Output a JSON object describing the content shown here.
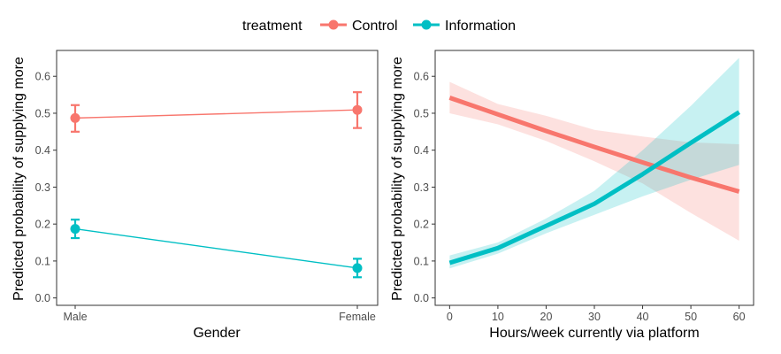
{
  "legend": {
    "title": "treatment",
    "entries": [
      {
        "label": "Control",
        "color": "#F8766D"
      },
      {
        "label": "Information",
        "color": "#00BFC4"
      }
    ]
  },
  "chart_data": [
    {
      "type": "line",
      "subtype": "point-errorbar",
      "xlabel": "Gender",
      "ylabel": "Predicted probability of supplying more",
      "categories": [
        "Male",
        "Female"
      ],
      "ylim": [
        -0.02,
        0.67
      ],
      "yticks": [
        0.0,
        0.1,
        0.2,
        0.3,
        0.4,
        0.5,
        0.6
      ],
      "ytick_labels": [
        "0.0",
        "0.1",
        "0.2",
        "0.3",
        "0.4",
        "0.5",
        "0.6"
      ],
      "grid": false,
      "series": [
        {
          "name": "Control",
          "color": "#F8766D",
          "values": [
            0.487,
            0.509
          ],
          "lower": [
            0.45,
            0.46
          ],
          "upper": [
            0.522,
            0.557
          ]
        },
        {
          "name": "Information",
          "color": "#00BFC4",
          "values": [
            0.187,
            0.081
          ],
          "lower": [
            0.162,
            0.056
          ],
          "upper": [
            0.212,
            0.106
          ]
        }
      ]
    },
    {
      "type": "line",
      "subtype": "line-ribbon",
      "xlabel": "Hours/week currently via platform",
      "ylabel": "Predicted probability of supplying more",
      "xlim": [
        -3,
        63
      ],
      "xticks": [
        0,
        10,
        20,
        30,
        40,
        50,
        60
      ],
      "xtick_labels": [
        "0",
        "10",
        "20",
        "30",
        "40",
        "50",
        "60"
      ],
      "ylim": [
        -0.02,
        0.67
      ],
      "yticks": [
        0.0,
        0.1,
        0.2,
        0.3,
        0.4,
        0.5,
        0.6
      ],
      "ytick_labels": [
        "0.0",
        "0.1",
        "0.2",
        "0.3",
        "0.4",
        "0.5",
        "0.6"
      ],
      "grid": false,
      "series": [
        {
          "name": "Control",
          "color": "#F8766D",
          "x": [
            0,
            10,
            20,
            30,
            40,
            50,
            60
          ],
          "values": [
            0.542,
            0.497,
            0.452,
            0.409,
            0.367,
            0.326,
            0.288
          ],
          "lower": [
            0.5,
            0.47,
            0.425,
            0.37,
            0.31,
            0.23,
            0.155
          ],
          "upper": [
            0.585,
            0.525,
            0.493,
            0.455,
            0.437,
            0.421,
            0.416
          ]
        },
        {
          "name": "Information",
          "color": "#00BFC4",
          "x": [
            0,
            10,
            20,
            30,
            40,
            50,
            60
          ],
          "values": [
            0.095,
            0.135,
            0.195,
            0.255,
            0.335,
            0.42,
            0.503
          ],
          "lower": [
            0.08,
            0.12,
            0.175,
            0.225,
            0.275,
            0.32,
            0.36
          ],
          "upper": [
            0.115,
            0.15,
            0.215,
            0.29,
            0.4,
            0.52,
            0.65
          ]
        }
      ]
    }
  ]
}
